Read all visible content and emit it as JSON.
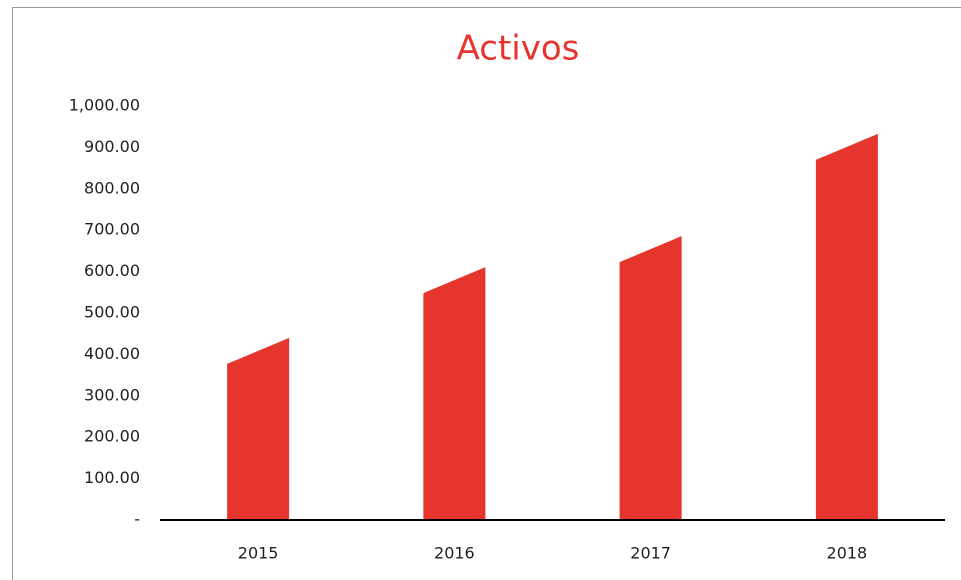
{
  "chart_data": {
    "type": "bar",
    "title": "Activos",
    "categories": [
      "2015",
      "2016",
      "2017",
      "2018"
    ],
    "values": [
      377,
      548,
      623,
      870
    ],
    "color": "#e5352d",
    "ylim": [
      0,
      1000
    ],
    "yticks": [
      {
        "value": 0,
        "label": "-"
      },
      {
        "value": 100,
        "label": "100.00"
      },
      {
        "value": 200,
        "label": "200.00"
      },
      {
        "value": 300,
        "label": "300.00"
      },
      {
        "value": 400,
        "label": "400.00"
      },
      {
        "value": 500,
        "label": "500.00"
      },
      {
        "value": 600,
        "label": "600.00"
      },
      {
        "value": 700,
        "label": "700.00"
      },
      {
        "value": 800,
        "label": "800.00"
      },
      {
        "value": 900,
        "label": "900.00"
      },
      {
        "value": 1000,
        "label": "1,000.00"
      }
    ],
    "grid": false
  }
}
